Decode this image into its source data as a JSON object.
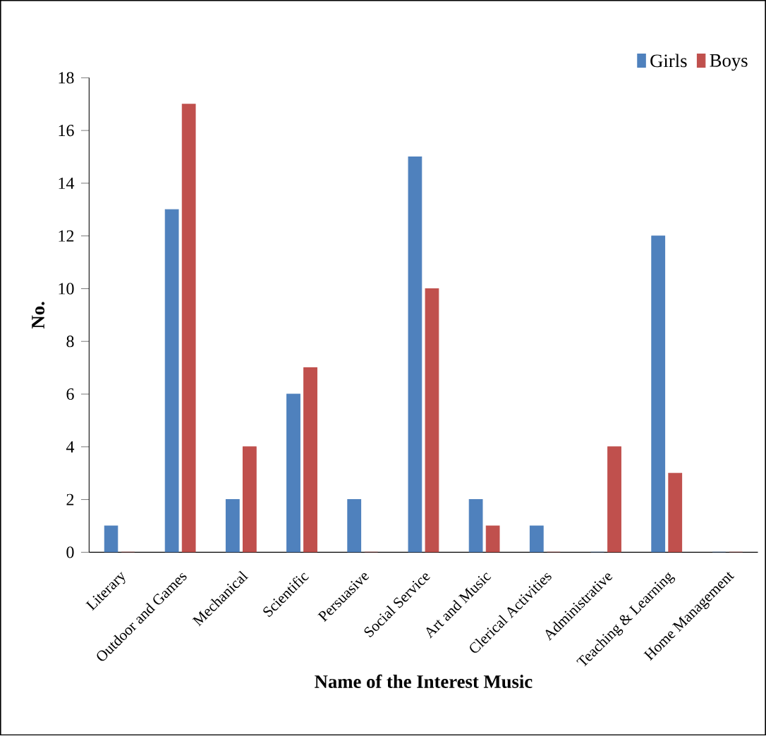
{
  "chart_data": {
    "type": "bar",
    "xlabel": "Name of the Interest Music",
    "ylabel": "No.",
    "categories": [
      "Literary",
      "Outdoor and Games",
      "Mechanical",
      "Scientific",
      "Persuasive",
      "Social Service",
      "Art and Music",
      "Clerical Activities",
      "Administrative",
      "Teaching & Learning",
      "Home Management"
    ],
    "series": [
      {
        "name": "Girls",
        "color": "#4f81bd",
        "values": [
          1,
          13,
          2,
          6,
          2,
          15,
          2,
          1,
          0,
          12,
          0
        ]
      },
      {
        "name": "Boys",
        "color": "#c0504d",
        "values": [
          0,
          17,
          4,
          7,
          0,
          10,
          1,
          0,
          4,
          3,
          0
        ]
      }
    ],
    "ylim": [
      0,
      18
    ],
    "yticks": [
      0,
      2,
      4,
      6,
      8,
      10,
      12,
      14,
      16,
      18
    ],
    "legend": "top right",
    "grid": false
  }
}
